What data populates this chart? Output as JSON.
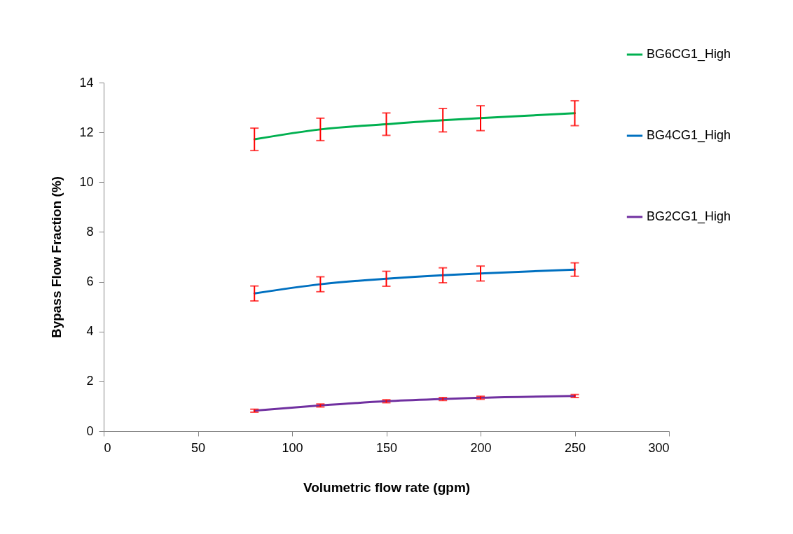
{
  "chart_data": {
    "type": "line",
    "xlabel": "Volumetric flow rate (gpm)",
    "ylabel": "Bypass Flow Fraction (%)",
    "xlim": [
      0,
      300
    ],
    "xticks": [
      0,
      50,
      100,
      150,
      200,
      250,
      300
    ],
    "ylim": [
      0,
      14
    ],
    "yticks": [
      0,
      2,
      4,
      6,
      8,
      10,
      12,
      14
    ],
    "grid": false,
    "legend": "top right",
    "x": [
      80,
      115,
      150,
      180,
      200,
      250
    ],
    "series": [
      {
        "name": "BG6CG1_High",
        "color": "#00b050",
        "values": [
          11.72,
          12.12,
          12.33,
          12.49,
          12.57,
          12.77
        ],
        "errors": [
          0.45,
          0.45,
          0.45,
          0.47,
          0.5,
          0.5
        ]
      },
      {
        "name": "BG4CG1_High",
        "color": "#0070c0",
        "values": [
          5.53,
          5.9,
          6.12,
          6.26,
          6.33,
          6.49
        ],
        "errors": [
          0.3,
          0.3,
          0.3,
          0.3,
          0.3,
          0.27
        ]
      },
      {
        "name": "BG2CG1_High",
        "color": "#7030a0",
        "values": [
          0.82,
          1.03,
          1.2,
          1.29,
          1.34,
          1.41
        ],
        "errors": [
          0.06,
          0.06,
          0.06,
          0.06,
          0.06,
          0.06
        ]
      }
    ]
  }
}
